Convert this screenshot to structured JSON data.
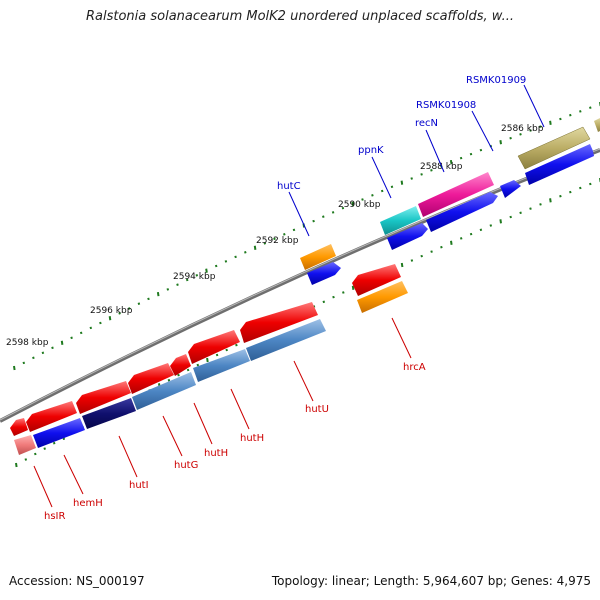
{
  "title": "Ralstonia solanacearum MolK2 unordered unplaced scaffolds, w...",
  "footer": {
    "accession": "Accession: NS_000197",
    "summary": "Topology: linear; Length: 5,964,607 bp; Genes: 4,975"
  },
  "colors": {
    "forward_label": "#0000cc",
    "reverse_label": "#cc0000",
    "backbone": "#7a7a7a",
    "tick": "#1f7a1f"
  },
  "scale": [
    {
      "label": "2586 kbp",
      "kbp": 2586
    },
    {
      "label": "2588 kbp",
      "kbp": 2588
    },
    {
      "label": "2590 kbp",
      "kbp": 2590
    },
    {
      "label": "2592 kbp",
      "kbp": 2592
    },
    {
      "label": "2594 kbp",
      "kbp": 2594
    },
    {
      "label": "2596 kbp",
      "kbp": 2596
    },
    {
      "label": "2598 kbp",
      "kbp": 2598
    }
  ],
  "forward_labels": [
    {
      "name": "RSMK01909"
    },
    {
      "name": "RSMK01908"
    },
    {
      "name": "recN"
    },
    {
      "name": "ppnK"
    },
    {
      "name": "hutC"
    }
  ],
  "reverse_labels": [
    {
      "name": "hrcA"
    },
    {
      "name": "hutU"
    },
    {
      "name": "hutH"
    },
    {
      "name": "hutH"
    },
    {
      "name": "hutG"
    },
    {
      "name": "hutI"
    },
    {
      "name": "hemH"
    },
    {
      "name": "hsIR"
    }
  ]
}
